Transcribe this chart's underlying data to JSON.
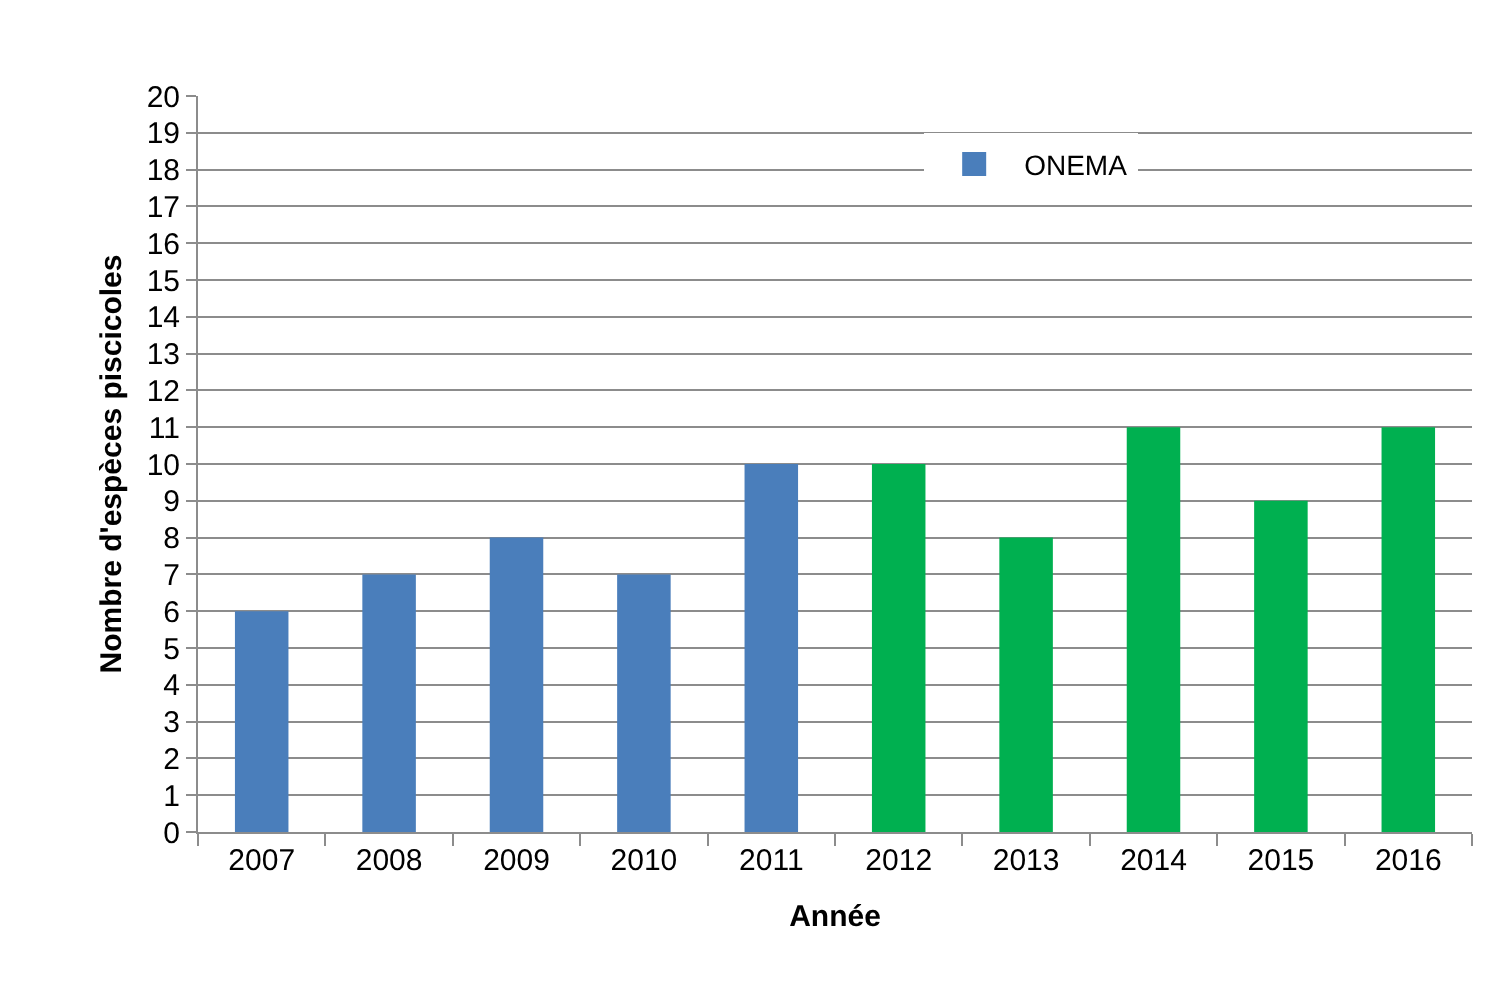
{
  "chart_data": {
    "type": "bar",
    "xlabel": "Année",
    "ylabel": "Nombre d'espèces piscicoles",
    "categories": [
      "2007",
      "2008",
      "2009",
      "2010",
      "2011",
      "2012",
      "2013",
      "2014",
      "2015",
      "2016"
    ],
    "series": [
      {
        "name": "ONEMA",
        "color": "#4a7ebb",
        "values": [
          6,
          7,
          8,
          7,
          10,
          null,
          null,
          null,
          null,
          null
        ]
      },
      {
        "color": "#00b050",
        "values": [
          null,
          null,
          null,
          null,
          null,
          10,
          8,
          11,
          9,
          11
        ]
      }
    ],
    "ylim": [
      0,
      20
    ],
    "yticks": [
      0,
      1,
      2,
      3,
      4,
      5,
      6,
      7,
      8,
      9,
      10,
      11,
      12,
      13,
      14,
      15,
      16,
      17,
      18,
      19,
      20
    ],
    "grid": "y",
    "legend": "top right"
  }
}
